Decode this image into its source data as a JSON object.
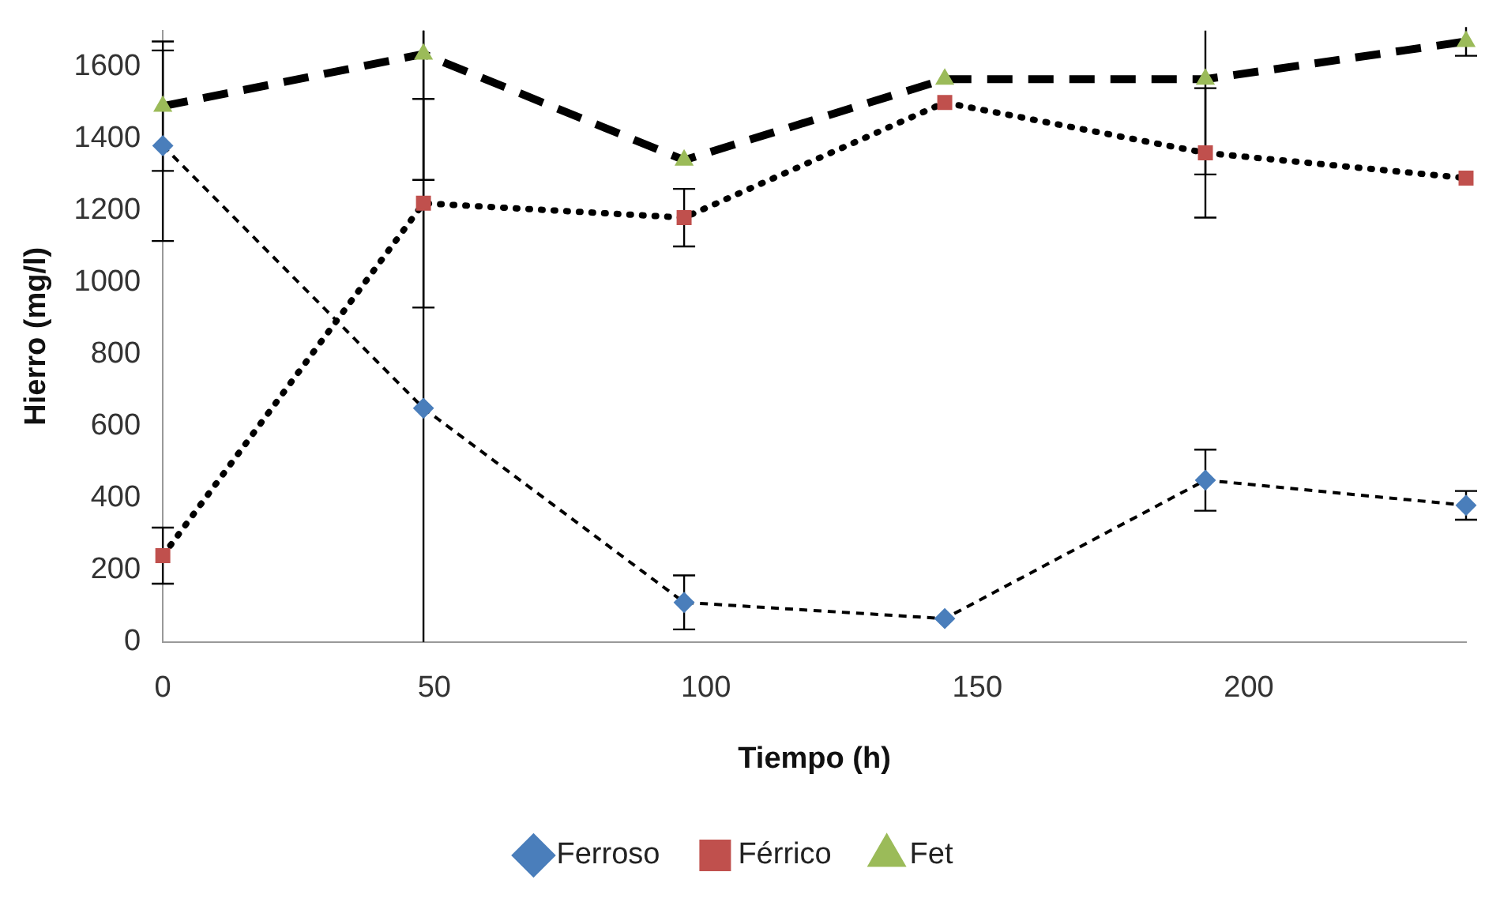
{
  "chart_data": {
    "type": "line",
    "xlabel": "Tiempo (h)",
    "ylabel": "Hierro (mg/l)",
    "x": [
      0,
      48,
      96,
      144,
      192,
      240
    ],
    "xlim": [
      0,
      240
    ],
    "xticks": [
      0,
      50,
      100,
      150,
      200
    ],
    "ylim": [
      0,
      1700
    ],
    "yticks": [
      0,
      200,
      400,
      600,
      800,
      1000,
      1200,
      1400,
      1600
    ],
    "grid": false,
    "legend": "bottom",
    "series": [
      {
        "name": "Ferroso",
        "color": "#4a7ebb",
        "marker": "diamond",
        "line_style": "dashed",
        "values": [
          1380,
          650,
          110,
          65,
          450,
          380
        ],
        "errors": [
          265,
          [
            0,
            1700
          ],
          75,
          null,
          85,
          40
        ]
      },
      {
        "name": "Férrico",
        "color": "#c0504d",
        "marker": "square",
        "line_style": "dotted",
        "values": [
          240,
          1220,
          1180,
          1500,
          1360,
          1290
        ],
        "errors": [
          78,
          290,
          80,
          null,
          180,
          null
        ]
      },
      {
        "name": "Fet",
        "color": "#9bbb59",
        "marker": "triangle",
        "line_style": "dashed",
        "values": [
          1490,
          1635,
          1340,
          1565,
          1565,
          1670
        ],
        "errors": [
          180,
          [
            1285,
            1700
          ],
          null,
          null,
          [
            1300,
            1700
          ],
          40
        ]
      }
    ]
  }
}
